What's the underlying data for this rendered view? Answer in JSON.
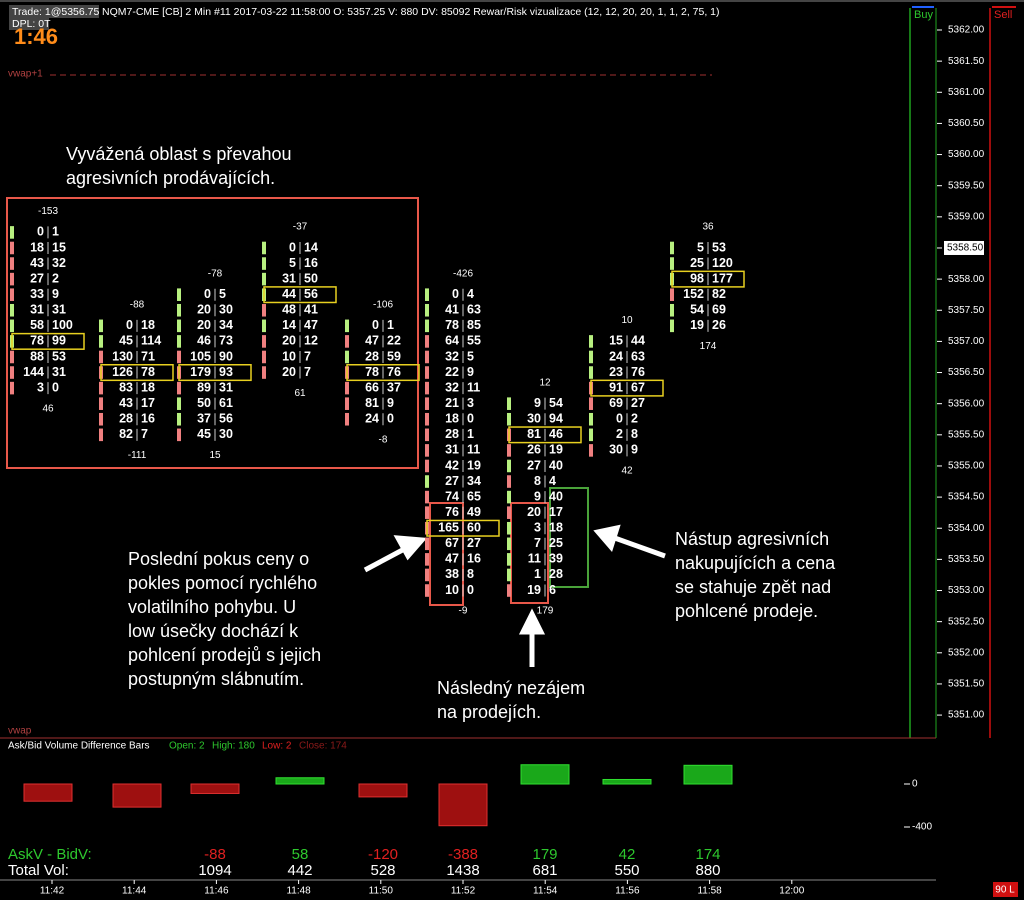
{
  "header": {
    "trade": "Trade: 1@5356.75",
    "dpl": "DPL: 0T",
    "timer": "1:46",
    "info": "NQM7-CME [CB] 2 Min  #11 2017-03-22 11:58:00 O: 5357.25 V: 880 DV: 85092  Rewar/Risk vizualizace  (12, 12, 20, 20, 1, 1, 2, 75, 1)",
    "buy": "Buy",
    "sell": "Sell"
  },
  "indicators": {
    "vwap_upper": "vwap+1",
    "vwap": "vwap"
  },
  "price_axis": {
    "ticks": [
      "5362.00",
      "5361.50",
      "5361.00",
      "5360.50",
      "5360.00",
      "5359.50",
      "5359.00",
      "5358.50",
      "5358.00",
      "5357.50",
      "5357.00",
      "5356.50",
      "5356.00",
      "5355.50",
      "5355.00",
      "5354.50",
      "5354.00",
      "5353.50",
      "5353.00",
      "5352.50",
      "5352.00",
      "5351.50",
      "5351.00"
    ],
    "current": "5358.50"
  },
  "footprint": {
    "bars": [
      {
        "high": 5358.75,
        "top": -153,
        "bottom": 46,
        "poc": 7,
        "rows": [
          [
            0,
            1
          ],
          [
            18,
            15
          ],
          [
            43,
            32
          ],
          [
            27,
            2
          ],
          [
            33,
            9
          ],
          [
            31,
            31
          ],
          [
            58,
            100
          ],
          [
            78,
            99
          ],
          [
            88,
            53
          ],
          [
            144,
            31
          ],
          [
            3,
            0
          ]
        ]
      },
      {
        "high": 5357.25,
        "top": -88,
        "bottom": -111,
        "poc": 3,
        "rows": [
          [
            0,
            18
          ],
          [
            45,
            114
          ],
          [
            130,
            71
          ],
          [
            126,
            78
          ],
          [
            83,
            18
          ],
          [
            43,
            17
          ],
          [
            28,
            16
          ],
          [
            82,
            7
          ]
        ]
      },
      {
        "high": 5357.75,
        "top": -78,
        "bottom": 15,
        "poc": 5,
        "rows": [
          [
            0,
            5
          ],
          [
            20,
            30
          ],
          [
            20,
            34
          ],
          [
            46,
            73
          ],
          [
            105,
            90
          ],
          [
            179,
            93
          ],
          [
            89,
            31
          ],
          [
            50,
            61
          ],
          [
            37,
            56
          ],
          [
            45,
            30
          ]
        ]
      },
      {
        "high": 5358.5,
        "top": -37,
        "bottom": 61,
        "poc": 3,
        "rows": [
          [
            0,
            14
          ],
          [
            5,
            16
          ],
          [
            31,
            50
          ],
          [
            44,
            56
          ],
          [
            48,
            41
          ],
          [
            14,
            47
          ],
          [
            20,
            12
          ],
          [
            10,
            7
          ],
          [
            20,
            7
          ]
        ]
      },
      {
        "high": 5357.25,
        "top": -106,
        "bottom": -8,
        "poc": 3,
        "rows": [
          [
            0,
            1
          ],
          [
            47,
            22
          ],
          [
            28,
            59
          ],
          [
            78,
            76
          ],
          [
            66,
            37
          ],
          [
            81,
            9
          ],
          [
            24,
            0
          ]
        ]
      },
      {
        "high": 5357.75,
        "top": -426,
        "bottom": -9,
        "poc": 15,
        "rows": [
          [
            0,
            4
          ],
          [
            41,
            63
          ],
          [
            78,
            85
          ],
          [
            64,
            55
          ],
          [
            32,
            5
          ],
          [
            22,
            9
          ],
          [
            32,
            11
          ],
          [
            21,
            3
          ],
          [
            18,
            0
          ],
          [
            28,
            1
          ],
          [
            31,
            11
          ],
          [
            42,
            19
          ],
          [
            27,
            34
          ],
          [
            74,
            65
          ],
          [
            76,
            49
          ],
          [
            165,
            60
          ],
          [
            67,
            27
          ],
          [
            47,
            16
          ],
          [
            38,
            8
          ],
          [
            10,
            0
          ]
        ]
      },
      {
        "high": 5356,
        "top": 12,
        "bottom": 179,
        "poc": 2,
        "rows": [
          [
            9,
            54
          ],
          [
            30,
            94
          ],
          [
            81,
            46
          ],
          [
            26,
            19
          ],
          [
            27,
            40
          ],
          [
            8,
            4
          ],
          [
            9,
            40
          ],
          [
            20,
            17
          ],
          [
            3,
            18
          ],
          [
            7,
            25
          ],
          [
            11,
            39
          ],
          [
            1,
            28
          ],
          [
            19,
            6
          ]
        ]
      },
      {
        "high": 5357,
        "top": 10,
        "bottom": 42,
        "poc": 3,
        "rows": [
          [
            15,
            44
          ],
          [
            24,
            63
          ],
          [
            23,
            76
          ],
          [
            91,
            67
          ],
          [
            69,
            27
          ],
          [
            0,
            2
          ],
          [
            2,
            8
          ],
          [
            30,
            9
          ]
        ]
      },
      {
        "high": 5358.5,
        "top": 36,
        "bottom": 174,
        "poc": 2,
        "rows": [
          [
            5,
            53
          ],
          [
            25,
            120
          ],
          [
            98,
            177
          ],
          [
            152,
            82
          ],
          [
            54,
            69
          ],
          [
            19,
            26
          ]
        ]
      }
    ]
  },
  "annotations": [
    {
      "lines": [
        "Vyvážená oblast s převahou",
        "agresivních prodávajících."
      ]
    },
    {
      "lines": [
        "Poslední pokus ceny o",
        "pokles pomocí rychlého",
        "volatilního pohybu. U",
        "low úsečky dochází k",
        "pohlcení prodejů s jejich",
        "postupným slábnutím."
      ]
    },
    {
      "lines": [
        "Následný nezájem",
        "na prodejích."
      ]
    },
    {
      "lines": [
        "Nástup agresivních",
        "nakupujících a cena",
        "se stahuje zpět nad",
        "pohlcené prodeje."
      ]
    }
  ],
  "delta_panel": {
    "title": "Ask/Bid Volume Difference Bars",
    "open": "Open: 2",
    "high": "High: 180",
    "low": "Low: 2",
    "close": "Close: 174",
    "axis": [
      0,
      -400
    ],
    "values": [
      -160,
      -215,
      -88,
      58,
      -120,
      -388,
      179,
      42,
      174
    ]
  },
  "summary": {
    "delta_label": "AskV - BidV:",
    "volume_label": "Total Vol:",
    "columns": [
      {
        "delta": -88,
        "volume": 1094
      },
      {
        "delta": 58,
        "volume": 442
      },
      {
        "delta": -120,
        "volume": 528
      },
      {
        "delta": -388,
        "volume": 1438
      },
      {
        "delta": 179,
        "volume": 681
      },
      {
        "delta": 42,
        "volume": 550
      },
      {
        "delta": 174,
        "volume": 880
      }
    ]
  },
  "time_axis": [
    "11:42",
    "11:44",
    "11:46",
    "11:48",
    "11:50",
    "11:52",
    "11:54",
    "11:56",
    "11:58",
    "12:00"
  ],
  "status": "90 L"
}
